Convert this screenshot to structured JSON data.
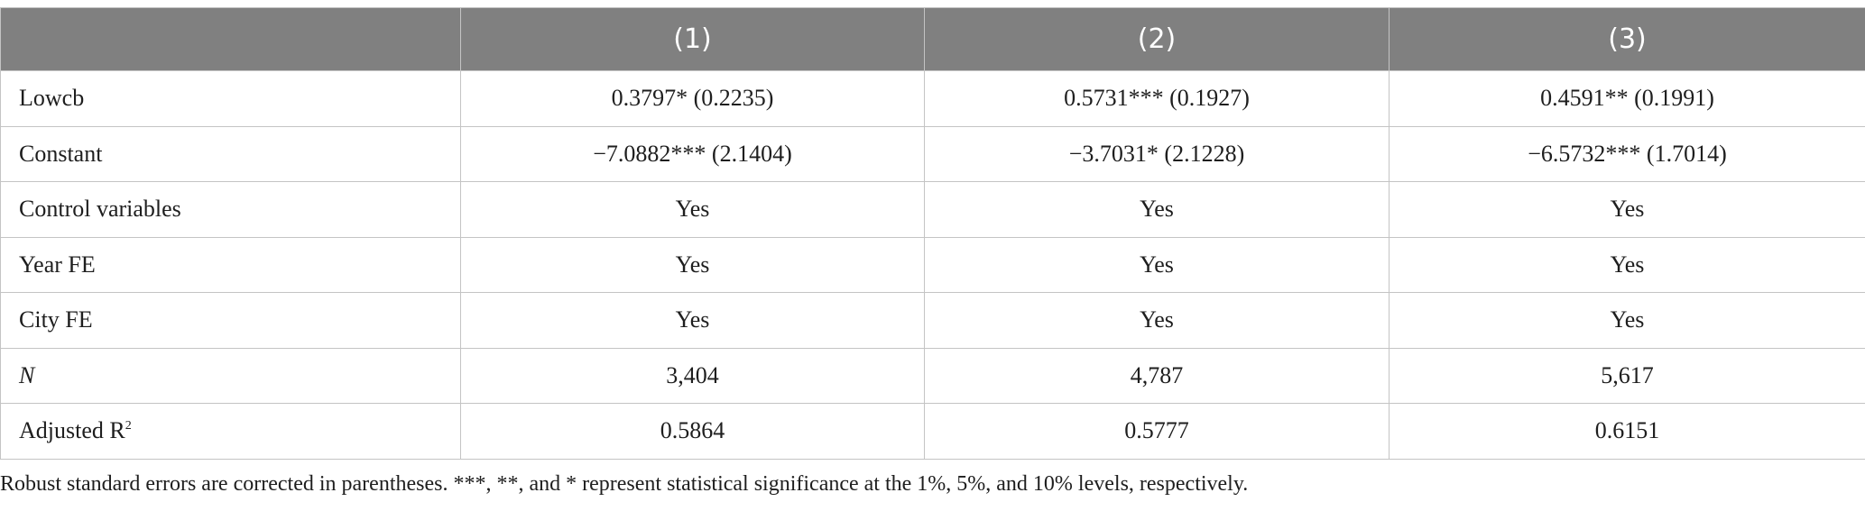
{
  "table": {
    "columns": [
      "",
      "(1)",
      "(2)",
      "(3)"
    ],
    "rows": [
      {
        "label": "Lowcb",
        "values": [
          "0.3797* (0.2235)",
          "0.5731*** (0.1927)",
          "0.4591** (0.1991)"
        ]
      },
      {
        "label": "Constant",
        "values": [
          "−7.0882*** (2.1404)",
          "−3.7031* (2.1228)",
          "−6.5732*** (1.7014)"
        ]
      },
      {
        "label": "Control variables",
        "values": [
          "Yes",
          "Yes",
          "Yes"
        ]
      },
      {
        "label": "Year FE",
        "values": [
          "Yes",
          "Yes",
          "Yes"
        ]
      },
      {
        "label": "City FE",
        "values": [
          "Yes",
          "Yes",
          "Yes"
        ]
      },
      {
        "label": "N",
        "values": [
          "3,404",
          "4,787",
          "5,617"
        ]
      },
      {
        "label": "Adjusted R",
        "label_sup": "2",
        "values": [
          "0.5864",
          "0.5777",
          "0.6151"
        ]
      }
    ]
  },
  "note": "Robust standard errors are corrected in parentheses. ***, **, and * represent statistical significance at the 1%, 5%, and 10% levels, respectively."
}
